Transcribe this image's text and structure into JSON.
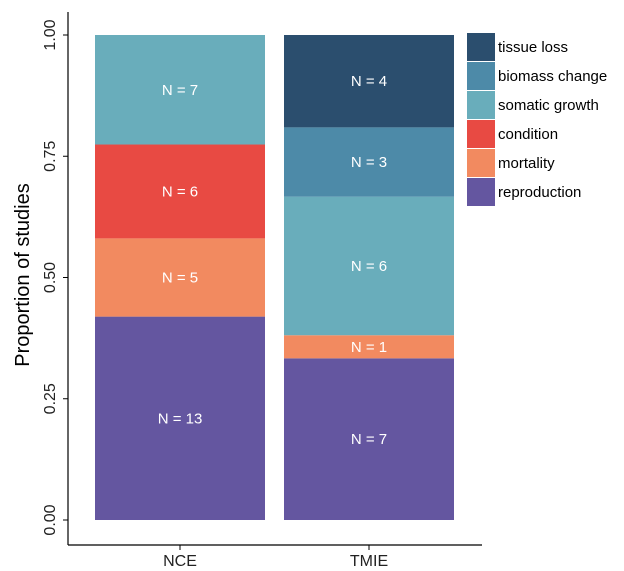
{
  "chart_data": {
    "type": "bar",
    "stacked": true,
    "normalized": true,
    "ylabel": "Proportion of studies",
    "xlabel": "",
    "ylim": [
      0,
      1
    ],
    "yticks": [
      "0.00",
      "0.25",
      "0.50",
      "0.75",
      "1.00"
    ],
    "categories": [
      "NCE",
      "TMIE"
    ],
    "series": [
      {
        "name": "reproduction",
        "color": "#6456a0",
        "counts": [
          13,
          7
        ],
        "labels": [
          "N = 13",
          "N = 7"
        ]
      },
      {
        "name": "mortality",
        "color": "#f28a60",
        "counts": [
          5,
          1
        ],
        "labels": [
          "N = 5",
          "N = 1"
        ]
      },
      {
        "name": "condition",
        "color": "#e84a43",
        "counts": [
          6,
          0
        ],
        "labels": [
          "N = 6",
          ""
        ]
      },
      {
        "name": "somatic growth",
        "color": "#69adbb",
        "counts": [
          7,
          6
        ],
        "labels": [
          "N = 7",
          "N = 6"
        ]
      },
      {
        "name": "biomass change",
        "color": "#4d8aa8",
        "counts": [
          0,
          3
        ],
        "labels": [
          "",
          "N = 3"
        ]
      },
      {
        "name": "tissue loss",
        "color": "#2b4e6e",
        "counts": [
          0,
          4
        ],
        "labels": [
          "",
          "N = 4"
        ]
      }
    ],
    "legend_order": [
      "tissue loss",
      "biomass change",
      "somatic growth",
      "condition",
      "mortality",
      "reproduction"
    ],
    "legend_position": "right",
    "grid": false
  }
}
